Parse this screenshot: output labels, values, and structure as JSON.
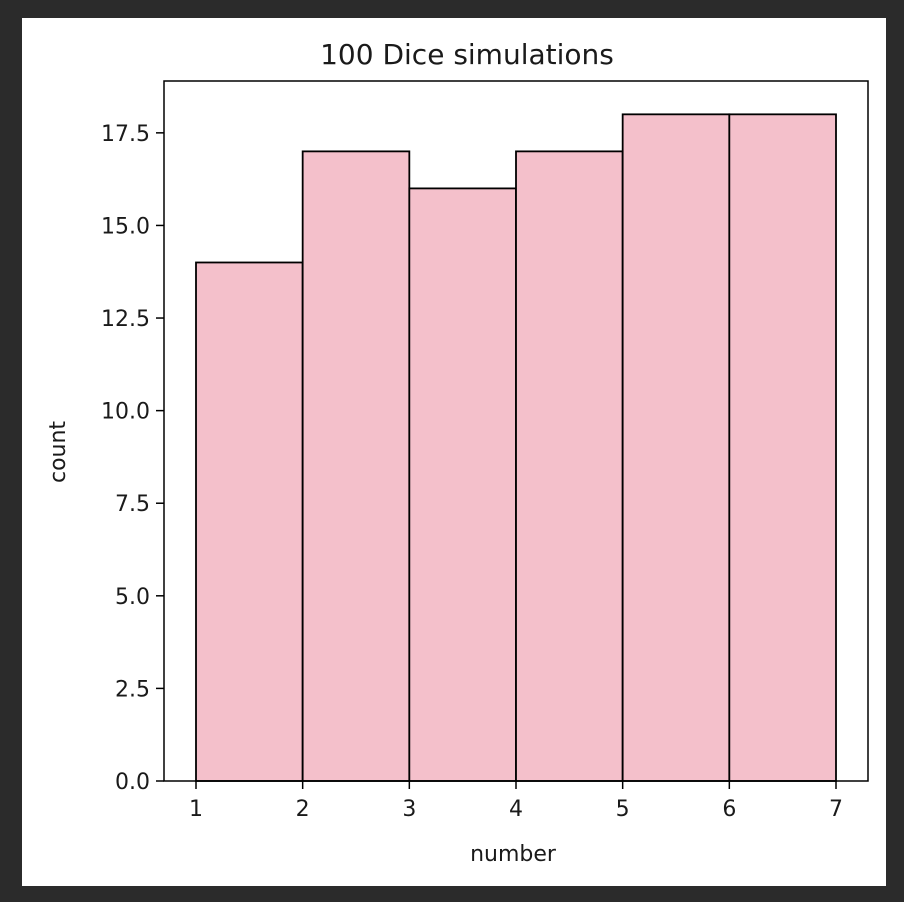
{
  "chart_data": {
    "type": "bar",
    "title": "100 Dice simulations",
    "xlabel": "number",
    "ylabel": "count",
    "bins": [
      {
        "x0": 1,
        "x1": 2,
        "count": 14
      },
      {
        "x0": 2,
        "x1": 3,
        "count": 17
      },
      {
        "x0": 3,
        "x1": 4,
        "count": 16
      },
      {
        "x0": 4,
        "x1": 5,
        "count": 17
      },
      {
        "x0": 5,
        "x1": 6,
        "count": 18
      },
      {
        "x0": 6,
        "x1": 7,
        "count": 18
      }
    ],
    "xlim": [
      0.7,
      7.3
    ],
    "ylim": [
      0,
      18.9
    ],
    "xticks": [
      1,
      2,
      3,
      4,
      5,
      6,
      7
    ],
    "xtick_labels": [
      "1",
      "2",
      "3",
      "4",
      "5",
      "6",
      "7"
    ],
    "yticks": [
      0,
      2.5,
      5,
      7.5,
      10,
      12.5,
      15,
      17.5
    ],
    "ytick_labels": [
      "0.0",
      "2.5",
      "5.0",
      "7.5",
      "10.0",
      "12.5",
      "15.0",
      "17.5"
    ],
    "bar_color": "#f4c0cb",
    "edge_color": "#000000",
    "grid": false,
    "legend": "none"
  }
}
